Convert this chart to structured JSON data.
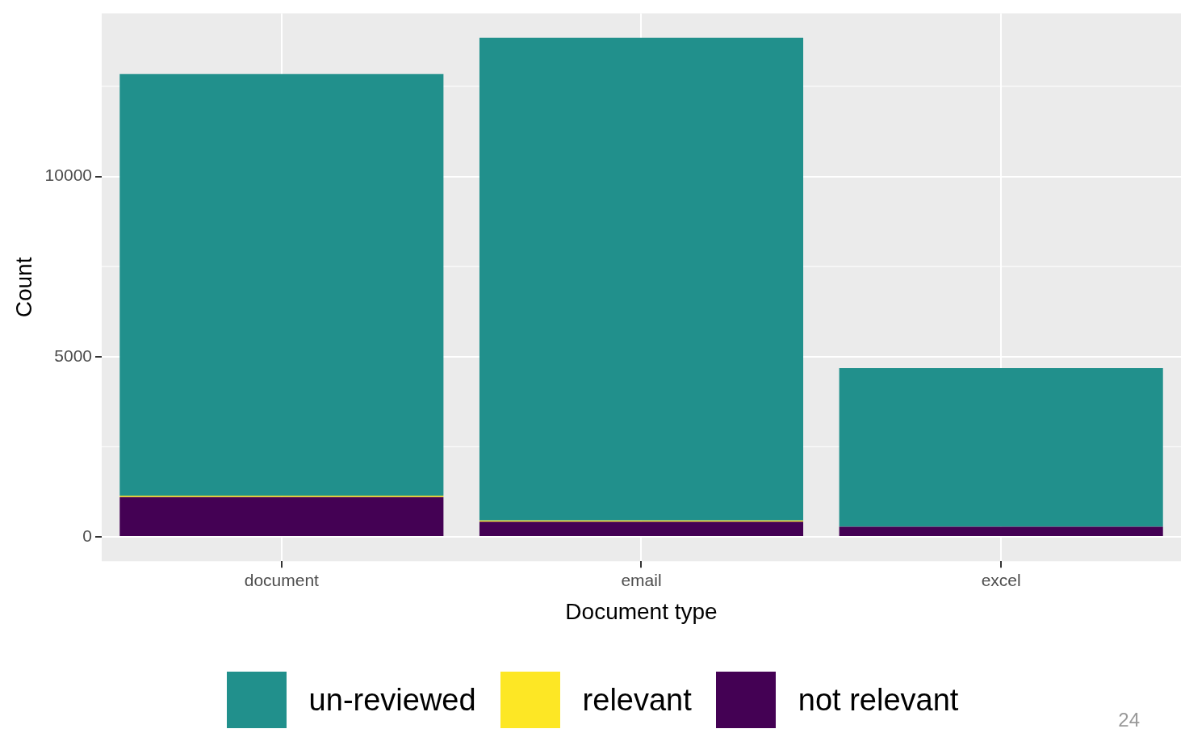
{
  "chart_data": {
    "type": "bar",
    "xlabel": "Document type",
    "ylabel": "Count",
    "categories": [
      "document",
      "email",
      "excel"
    ],
    "stacked": true,
    "ylim": [
      -679,
      14525
    ],
    "yticks": [
      0,
      5000,
      10000
    ],
    "grid": true,
    "legend": "bottom",
    "series": [
      {
        "name": "not relevant",
        "color": "#440154",
        "values": [
          1100,
          420,
          280
        ]
      },
      {
        "name": "relevant",
        "color": "#fde725",
        "values": [
          40,
          30,
          0
        ]
      },
      {
        "name": "un-reviewed",
        "color": "#21908c",
        "values": [
          11700,
          13400,
          4400
        ]
      }
    ],
    "annotations": [
      "24"
    ]
  }
}
